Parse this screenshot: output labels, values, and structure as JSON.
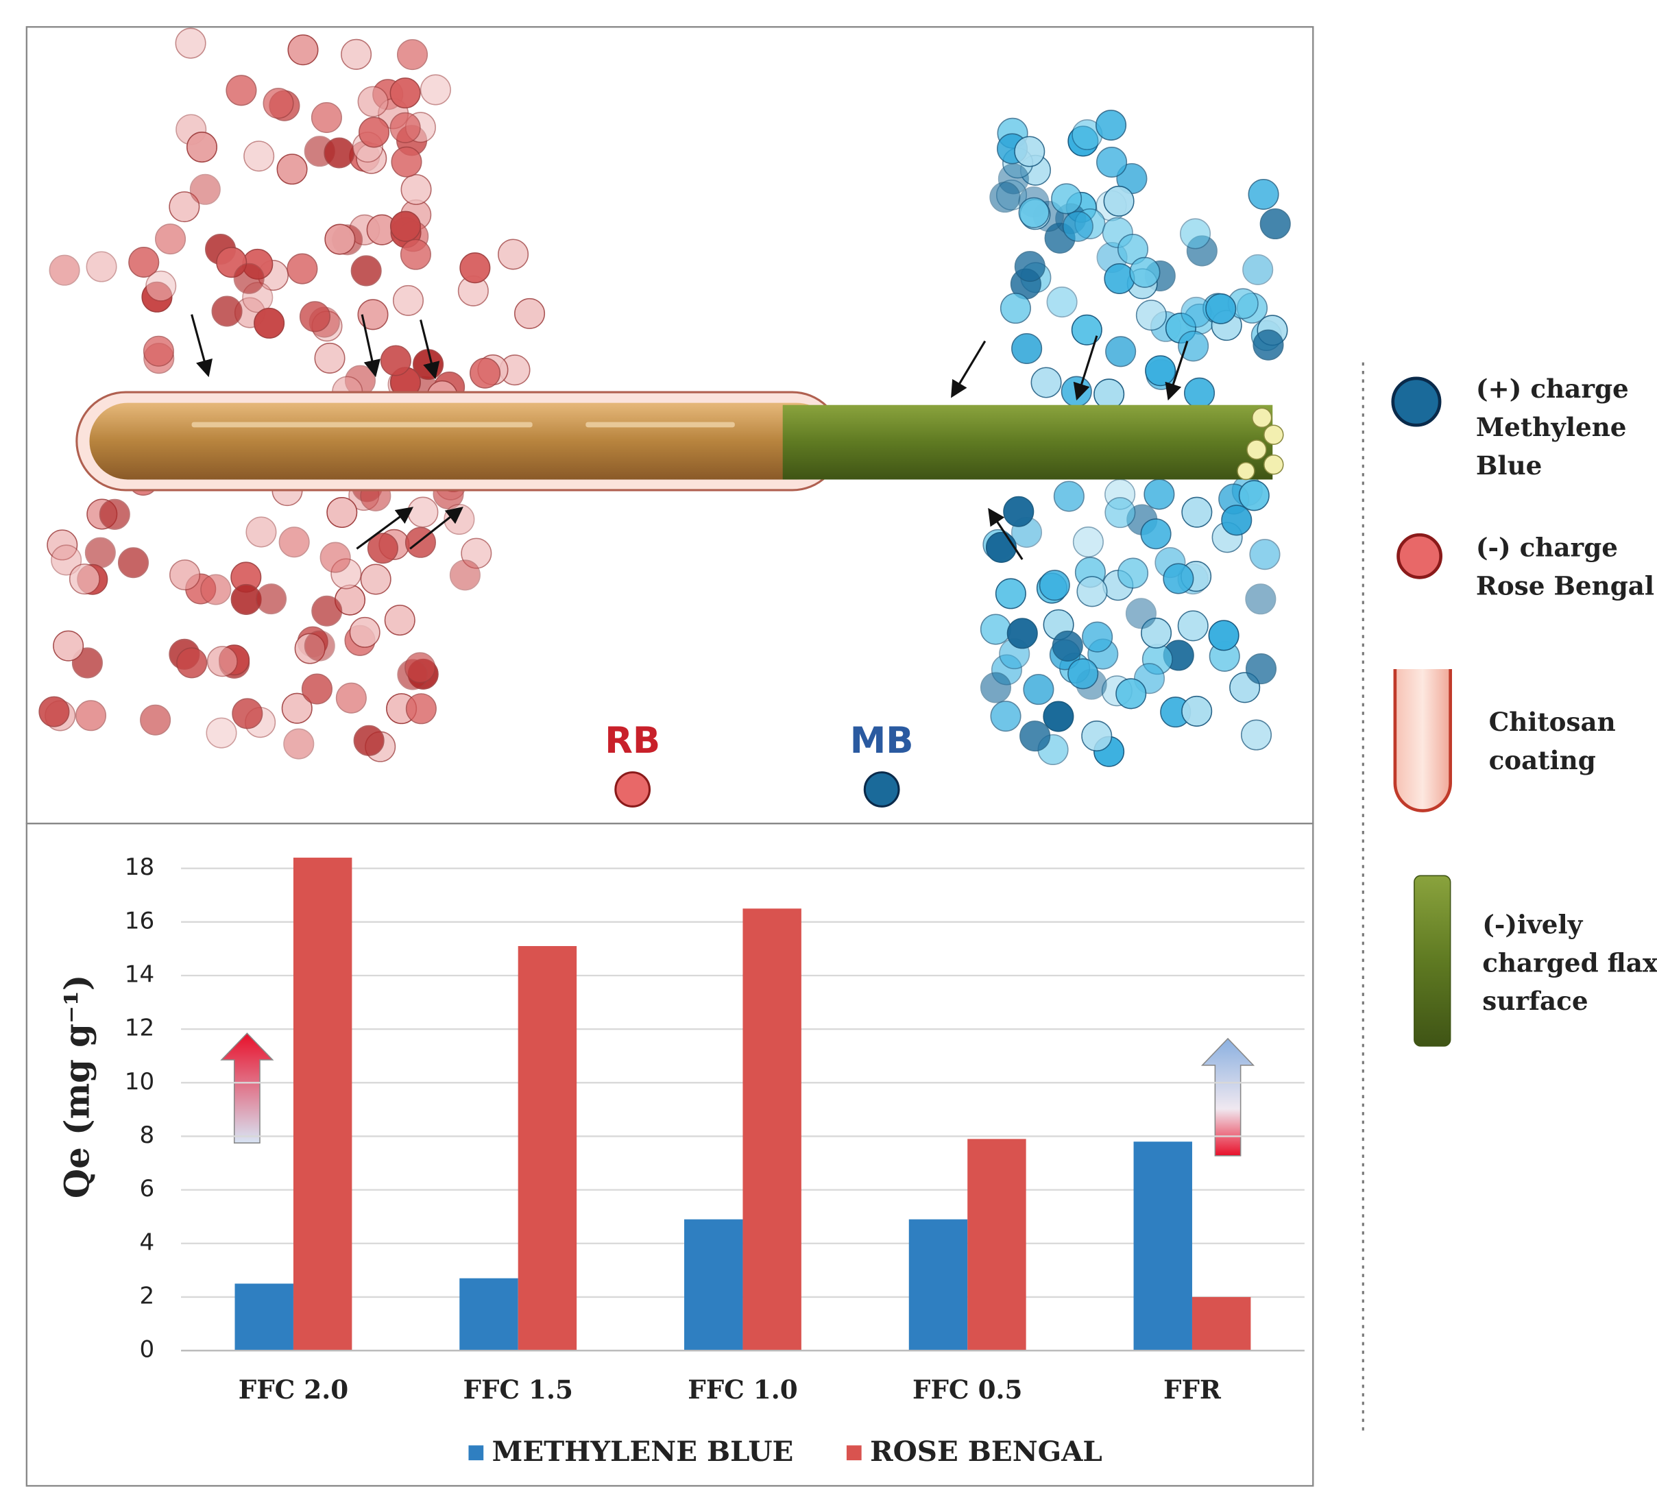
{
  "diagram": {
    "labels": {
      "rb": "RB",
      "mb": "MB"
    },
    "legend": [
      {
        "lines": [
          "(+) charge",
          "Methylene",
          "Blue"
        ]
      },
      {
        "lines": [
          "(-) charge",
          "Rose Bengal"
        ]
      },
      {
        "lines": [
          "Chitosan",
          "coating"
        ]
      },
      {
        "lines": [
          "(-)ively",
          "charged flax",
          "surface"
        ]
      }
    ]
  },
  "chart_data": {
    "type": "bar",
    "y_label": "Qe (mg g⁻¹)",
    "categories": [
      "FFC 2.0",
      "FFC 1.5",
      "FFC 1.0",
      "FFC 0.5",
      "FFR"
    ],
    "series": [
      {
        "name": "METHYLENE BLUE",
        "color": "#2f7fc1",
        "values": [
          2.5,
          2.7,
          4.9,
          4.9,
          7.8
        ]
      },
      {
        "name": "ROSE BENGAL",
        "color": "#d9534f",
        "values": [
          18.4,
          15.1,
          16.5,
          7.9,
          2.0
        ]
      }
    ],
    "ylim": [
      0,
      19
    ],
    "yticks": [
      0,
      2,
      4,
      6,
      8,
      10,
      12,
      14,
      16,
      18
    ],
    "grid": true
  }
}
